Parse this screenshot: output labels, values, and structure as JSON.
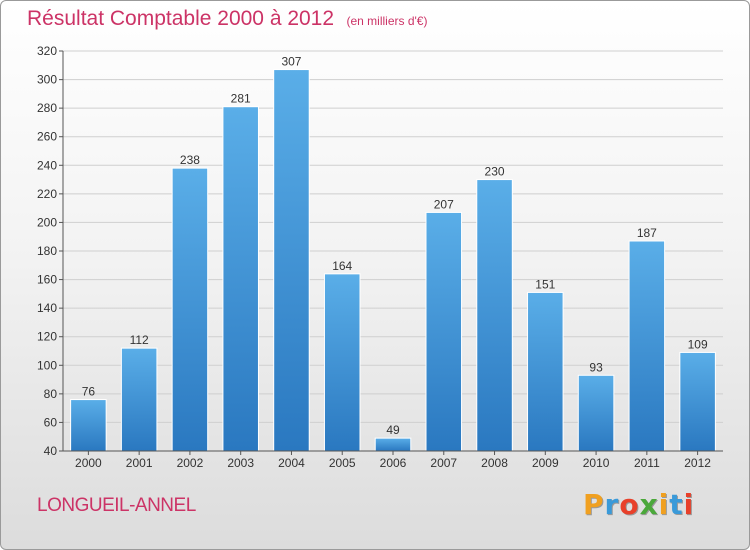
{
  "title": {
    "main": "Résultat Comptable 2000 à 2012",
    "unit": "(en milliers d'€)"
  },
  "town": "LONGUEIL-ANNEL",
  "logo": {
    "letters": [
      "P",
      "r",
      "o",
      "x",
      "i",
      "t",
      "i"
    ],
    "colors": [
      "#f0a020",
      "#3a9ad9",
      "#e8402a",
      "#4aa83a",
      "#f0a020",
      "#3a9ad9",
      "#e8402a"
    ]
  },
  "chart_data": {
    "type": "bar",
    "title": "Résultat Comptable 2000 à 2012",
    "ylabel": "en milliers d'€",
    "xlabel": "",
    "categories": [
      "2000",
      "2001",
      "2002",
      "2003",
      "2004",
      "2005",
      "2006",
      "2007",
      "2008",
      "2009",
      "2010",
      "2011",
      "2012"
    ],
    "values": [
      76,
      112,
      238,
      281,
      307,
      164,
      49,
      207,
      230,
      151,
      93,
      187,
      109
    ],
    "ylim": [
      40,
      320
    ],
    "yticks": [
      40,
      60,
      80,
      100,
      120,
      140,
      160,
      180,
      200,
      220,
      240,
      260,
      280,
      300,
      320
    ],
    "grid": true,
    "bar_color": "#3a8fd6"
  }
}
